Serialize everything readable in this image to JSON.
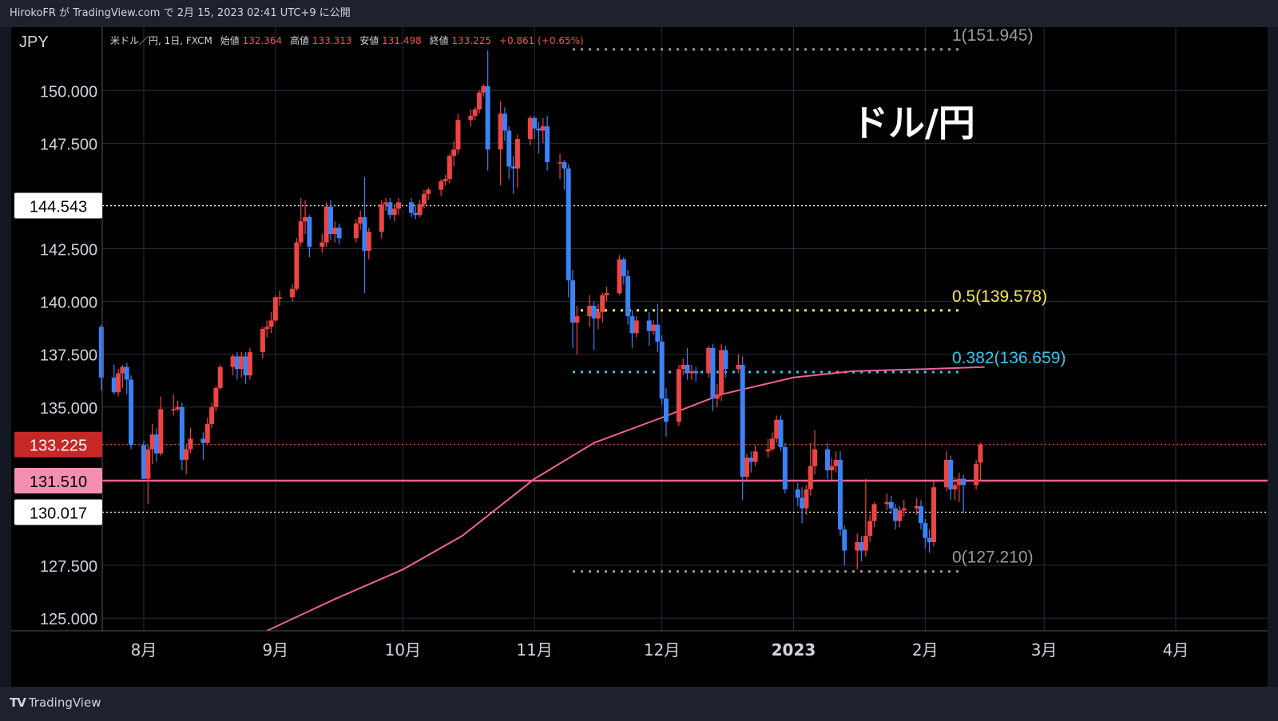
{
  "publish_line": "HirokoFR が TradingView.com で 2月 15, 2023 02:41 UTC+9 に公開",
  "footer_brand": "TradingView",
  "chart_data": {
    "type": "candlestick",
    "currency_label": "JPY",
    "title": "ドル/円",
    "ohlc_header": {
      "symbol": "米ドル／円, 1日, FXCM",
      "open_label": "始値",
      "open": "132.364",
      "high_label": "高値",
      "high": "133.313",
      "low_label": "安値",
      "low": "131.498",
      "close_label": "終値",
      "close": "133.225",
      "change": "+0.861 (+0.65%)"
    },
    "y_axis": {
      "ylim": [
        124.4,
        153.0
      ],
      "ticks": [
        "150.000",
        "147.500",
        "142.500",
        "140.000",
        "137.500",
        "135.000",
        "127.500",
        "125.000"
      ]
    },
    "x_axis": {
      "ticks": [
        {
          "label": "8月",
          "x": "2022-08-01",
          "bold": false
        },
        {
          "label": "9月",
          "x": "2022-09-01",
          "bold": false
        },
        {
          "label": "10月",
          "x": "2022-10-01",
          "bold": false
        },
        {
          "label": "11月",
          "x": "2022-11-01",
          "bold": false
        },
        {
          "label": "12月",
          "x": "2022-12-01",
          "bold": false
        },
        {
          "label": "2023",
          "x": "2023-01-01",
          "bold": true
        },
        {
          "label": "2月",
          "x": "2023-02-01",
          "bold": false
        },
        {
          "label": "3月",
          "x": "2023-03-01",
          "bold": false
        },
        {
          "label": "4月",
          "x": "2023-04-01",
          "bold": false
        }
      ]
    },
    "price_labels": [
      {
        "value": "144.543",
        "kind": "white"
      },
      {
        "value": "133.225",
        "kind": "red"
      },
      {
        "value": "131.510",
        "kind": "pink"
      },
      {
        "value": "130.017",
        "kind": "white"
      }
    ],
    "horizontal_lines": [
      {
        "value": 144.543,
        "style": "dotted",
        "color": "#ffffff"
      },
      {
        "value": 133.225,
        "style": "dotted",
        "color": "#e8453c"
      },
      {
        "value": 131.51,
        "style": "solid",
        "color": "#f06292"
      },
      {
        "value": 130.017,
        "style": "dotted",
        "color": "#ffffff"
      }
    ],
    "fibonacci": [
      {
        "label": "1(151.945)",
        "value": 151.945,
        "color": "#9a9a9a"
      },
      {
        "label": "0.5(139.578)",
        "value": 139.578,
        "color": "#f7e84a"
      },
      {
        "label": "0.382(136.659)",
        "value": 136.659,
        "color": "#36c5f0"
      },
      {
        "label": "0(127.210)",
        "value": 127.21,
        "color": "#9a9a9a"
      }
    ],
    "fib_range": [
      "2022-11-10",
      "2023-02-10"
    ],
    "colors": {
      "up": "#ef4444",
      "down": "#3b82f6",
      "ma": "#f06292"
    },
    "moving_average": [
      [
        "2022-08-30",
        124.4
      ],
      [
        "2022-09-15",
        125.9
      ],
      [
        "2022-10-01",
        127.3
      ],
      [
        "2022-10-15",
        128.9
      ],
      [
        "2022-11-01",
        131.6
      ],
      [
        "2022-11-15",
        133.3
      ],
      [
        "2022-12-01",
        134.5
      ],
      [
        "2022-12-15",
        135.6
      ],
      [
        "2023-01-01",
        136.4
      ],
      [
        "2023-01-15",
        136.7
      ],
      [
        "2023-02-01",
        136.8
      ],
      [
        "2023-02-15",
        136.9
      ]
    ],
    "candles": [
      [
        "2022-07-22",
        138.8,
        136.4,
        138.9,
        135.8
      ],
      [
        "2022-07-25",
        136.4,
        135.7,
        137.0,
        135.6
      ],
      [
        "2022-07-26",
        135.7,
        136.6,
        136.8,
        135.5
      ],
      [
        "2022-07-27",
        136.6,
        136.9,
        137.0,
        135.9
      ],
      [
        "2022-07-28",
        136.9,
        136.3,
        137.1,
        135.6
      ],
      [
        "2022-07-29",
        136.3,
        133.2,
        136.5,
        133.0
      ],
      [
        "2022-08-01",
        133.2,
        131.6,
        133.4,
        131.6
      ],
      [
        "2022-08-02",
        131.6,
        133.0,
        133.2,
        130.4
      ],
      [
        "2022-08-03",
        133.0,
        133.7,
        134.2,
        132.3
      ],
      [
        "2022-08-04",
        133.7,
        132.8,
        134.0,
        132.4
      ],
      [
        "2022-08-05",
        132.8,
        134.9,
        135.5,
        132.7
      ],
      [
        "2022-08-08",
        134.9,
        134.9,
        135.6,
        134.6
      ],
      [
        "2022-08-09",
        134.9,
        135.0,
        135.3,
        134.8
      ],
      [
        "2022-08-10",
        135.0,
        132.5,
        135.2,
        132.0
      ],
      [
        "2022-08-11",
        132.5,
        133.0,
        133.2,
        131.8
      ],
      [
        "2022-08-12",
        133.0,
        133.5,
        134.0,
        132.8
      ],
      [
        "2022-08-15",
        133.5,
        133.3,
        133.8,
        132.5
      ],
      [
        "2022-08-16",
        133.3,
        134.2,
        134.5,
        133.2
      ],
      [
        "2022-08-17",
        134.2,
        135.0,
        135.2,
        134.0
      ],
      [
        "2022-08-18",
        135.0,
        135.9,
        136.0,
        134.8
      ],
      [
        "2022-08-19",
        135.9,
        136.9,
        137.0,
        135.8
      ],
      [
        "2022-08-22",
        136.9,
        137.4,
        137.5,
        136.5
      ],
      [
        "2022-08-23",
        137.4,
        136.8,
        137.6,
        136.3
      ],
      [
        "2022-08-24",
        136.8,
        137.4,
        137.6,
        136.4
      ],
      [
        "2022-08-25",
        137.4,
        136.5,
        137.6,
        136.1
      ],
      [
        "2022-08-26",
        136.5,
        137.6,
        137.8,
        136.3
      ],
      [
        "2022-08-29",
        137.6,
        138.7,
        138.8,
        137.3
      ],
      [
        "2022-08-30",
        138.7,
        138.8,
        139.1,
        138.3
      ],
      [
        "2022-08-31",
        138.8,
        139.1,
        139.5,
        138.5
      ],
      [
        "2022-09-01",
        139.1,
        140.2,
        140.3,
        139.0
      ],
      [
        "2022-09-02",
        140.2,
        140.2,
        140.5,
        139.8
      ],
      [
        "2022-09-05",
        140.2,
        140.6,
        140.8,
        140.0
      ],
      [
        "2022-09-06",
        140.6,
        142.8,
        143.0,
        140.5
      ],
      [
        "2022-09-07",
        142.8,
        143.8,
        144.9,
        142.6
      ],
      [
        "2022-09-08",
        143.8,
        144.0,
        144.8,
        143.2
      ],
      [
        "2022-09-09",
        144.0,
        142.6,
        144.1,
        142.1
      ],
      [
        "2022-09-12",
        142.6,
        142.8,
        143.2,
        142.3
      ],
      [
        "2022-09-13",
        142.8,
        144.5,
        144.7,
        142.6
      ],
      [
        "2022-09-14",
        144.5,
        143.2,
        144.8,
        142.9
      ],
      [
        "2022-09-15",
        143.2,
        143.5,
        143.8,
        142.8
      ],
      [
        "2022-09-16",
        143.5,
        143.0,
        143.7,
        142.7
      ],
      [
        "2022-09-20",
        143.0,
        143.7,
        143.9,
        142.8
      ],
      [
        "2022-09-21",
        143.7,
        144.0,
        144.3,
        143.4
      ],
      [
        "2022-09-22",
        144.0,
        142.4,
        145.9,
        140.4
      ],
      [
        "2022-09-23",
        142.4,
        143.3,
        143.5,
        142.0
      ],
      [
        "2022-09-26",
        143.3,
        144.6,
        144.8,
        143.0
      ],
      [
        "2022-09-27",
        144.6,
        144.7,
        144.9,
        144.3
      ],
      [
        "2022-09-28",
        144.7,
        144.1,
        144.9,
        143.9
      ],
      [
        "2022-09-29",
        144.1,
        144.4,
        144.6,
        143.8
      ],
      [
        "2022-09-30",
        144.4,
        144.7,
        144.9,
        144.1
      ],
      [
        "2022-10-03",
        144.7,
        144.2,
        144.9,
        144.0
      ],
      [
        "2022-10-04",
        144.2,
        144.1,
        144.5,
        143.9
      ],
      [
        "2022-10-05",
        144.1,
        144.6,
        144.8,
        144.0
      ],
      [
        "2022-10-06",
        144.6,
        145.1,
        145.3,
        144.4
      ],
      [
        "2022-10-07",
        145.1,
        145.3,
        145.4,
        144.8
      ],
      [
        "2022-10-10",
        145.3,
        145.7,
        145.8,
        145.0
      ],
      [
        "2022-10-11",
        145.7,
        145.8,
        146.0,
        145.5
      ],
      [
        "2022-10-12",
        145.8,
        146.9,
        147.0,
        145.6
      ],
      [
        "2022-10-13",
        146.9,
        147.2,
        147.6,
        146.4
      ],
      [
        "2022-10-14",
        147.2,
        148.6,
        148.9,
        147.0
      ],
      [
        "2022-10-17",
        148.6,
        148.8,
        149.1,
        148.3
      ],
      [
        "2022-10-18",
        148.8,
        149.1,
        149.2,
        148.6
      ],
      [
        "2022-10-19",
        149.1,
        149.9,
        150.0,
        148.9
      ],
      [
        "2022-10-20",
        149.9,
        150.2,
        150.3,
        149.7
      ],
      [
        "2022-10-21",
        150.2,
        147.2,
        151.9,
        146.2
      ],
      [
        "2022-10-24",
        147.2,
        148.9,
        149.5,
        145.5
      ],
      [
        "2022-10-25",
        148.9,
        148.1,
        149.2,
        147.6
      ],
      [
        "2022-10-26",
        148.1,
        146.4,
        148.3,
        145.8
      ],
      [
        "2022-10-27",
        146.4,
        146.3,
        146.9,
        145.1
      ],
      [
        "2022-10-28",
        146.3,
        147.7,
        147.9,
        145.4
      ],
      [
        "2022-10-31",
        147.7,
        148.7,
        148.8,
        147.4
      ],
      [
        "2022-11-01",
        148.7,
        148.2,
        148.8,
        147.7
      ],
      [
        "2022-11-02",
        148.2,
        148.1,
        148.5,
        147.0
      ],
      [
        "2022-11-03",
        148.1,
        148.3,
        148.7,
        147.5
      ],
      [
        "2022-11-04",
        148.3,
        146.6,
        148.8,
        146.2
      ],
      [
        "2022-11-07",
        146.6,
        146.6,
        147.0,
        145.8
      ],
      [
        "2022-11-08",
        146.6,
        146.3,
        146.7,
        145.3
      ],
      [
        "2022-11-09",
        146.3,
        141.0,
        146.5,
        140.2
      ],
      [
        "2022-11-10",
        141.0,
        139.0,
        141.5,
        137.8
      ],
      [
        "2022-11-11",
        139.0,
        139.3,
        139.8,
        137.5
      ],
      [
        "2022-11-14",
        139.3,
        139.8,
        140.3,
        138.8
      ],
      [
        "2022-11-15",
        139.8,
        139.2,
        140.0,
        137.7
      ],
      [
        "2022-11-16",
        139.2,
        139.5,
        139.9,
        138.7
      ],
      [
        "2022-11-17",
        139.5,
        140.3,
        140.4,
        139.0
      ],
      [
        "2022-11-18",
        140.3,
        140.4,
        140.7,
        140.0
      ],
      [
        "2022-11-21",
        140.4,
        142.0,
        142.2,
        140.3
      ],
      [
        "2022-11-22",
        142.0,
        141.2,
        142.1,
        140.8
      ],
      [
        "2022-11-23",
        141.2,
        139.3,
        141.5,
        138.9
      ],
      [
        "2022-11-24",
        139.3,
        138.5,
        139.6,
        137.8
      ],
      [
        "2022-11-25",
        138.5,
        139.1,
        139.3,
        138.3
      ],
      [
        "2022-11-28",
        139.1,
        138.6,
        139.5,
        137.9
      ],
      [
        "2022-11-29",
        138.6,
        138.9,
        139.1,
        138.4
      ],
      [
        "2022-11-30",
        138.9,
        138.1,
        139.9,
        137.6
      ],
      [
        "2022-12-01",
        138.1,
        135.4,
        138.4,
        135.1
      ],
      [
        "2022-12-02",
        135.4,
        134.3,
        135.9,
        133.6
      ],
      [
        "2022-12-05",
        134.3,
        136.8,
        137.0,
        134.1
      ],
      [
        "2022-12-06",
        136.8,
        137.0,
        137.3,
        136.5
      ],
      [
        "2022-12-07",
        137.0,
        136.6,
        137.8,
        136.3
      ],
      [
        "2022-12-08",
        136.6,
        136.7,
        137.0,
        136.3
      ],
      [
        "2022-12-09",
        136.7,
        136.6,
        136.9,
        136.2
      ],
      [
        "2022-12-12",
        136.6,
        137.8,
        137.9,
        136.4
      ],
      [
        "2022-12-13",
        137.8,
        135.4,
        138.0,
        134.8
      ],
      [
        "2022-12-14",
        135.4,
        135.6,
        136.1,
        135.0
      ],
      [
        "2022-12-15",
        135.6,
        137.7,
        138.0,
        135.3
      ],
      [
        "2022-12-16",
        137.7,
        136.8,
        137.9,
        136.4
      ],
      [
        "2022-12-19",
        136.8,
        137.0,
        137.5,
        136.6
      ],
      [
        "2022-12-20",
        137.0,
        131.7,
        137.4,
        130.6
      ],
      [
        "2022-12-21",
        131.7,
        132.6,
        132.8,
        131.5
      ],
      [
        "2022-12-22",
        132.6,
        132.4,
        132.9,
        131.9
      ],
      [
        "2022-12-23",
        132.4,
        132.9,
        133.2,
        132.2
      ],
      [
        "2022-12-26",
        132.9,
        133.0,
        133.5,
        132.6
      ],
      [
        "2022-12-27",
        133.0,
        133.5,
        133.8,
        132.9
      ],
      [
        "2022-12-28",
        133.5,
        134.4,
        134.6,
        133.3
      ],
      [
        "2022-12-29",
        134.4,
        133.1,
        134.6,
        132.9
      ],
      [
        "2022-12-30",
        133.1,
        131.1,
        133.3,
        130.9
      ],
      [
        "2023-01-02",
        131.1,
        130.7,
        131.4,
        130.3
      ],
      [
        "2023-01-03",
        130.7,
        130.2,
        131.2,
        129.5
      ],
      [
        "2023-01-04",
        130.2,
        131.1,
        131.3,
        129.9
      ],
      [
        "2023-01-05",
        131.1,
        132.2,
        133.3,
        130.8
      ],
      [
        "2023-01-06",
        132.2,
        133.0,
        133.9,
        131.8
      ],
      [
        "2023-01-09",
        133.0,
        132.0,
        133.3,
        131.6
      ],
      [
        "2023-01-10",
        132.0,
        132.2,
        132.6,
        131.5
      ],
      [
        "2023-01-11",
        132.2,
        132.5,
        132.9,
        131.9
      ],
      [
        "2023-01-12",
        132.5,
        129.2,
        132.9,
        128.9
      ],
      [
        "2023-01-13",
        129.2,
        128.2,
        129.4,
        127.5
      ],
      [
        "2023-01-16",
        128.2,
        128.6,
        129.0,
        127.3
      ],
      [
        "2023-01-17",
        128.6,
        128.2,
        128.9,
        127.7
      ],
      [
        "2023-01-18",
        128.2,
        128.9,
        131.6,
        127.9
      ],
      [
        "2023-01-19",
        128.9,
        129.6,
        129.9,
        128.6
      ],
      [
        "2023-01-20",
        129.6,
        130.4,
        130.5,
        129.3
      ],
      [
        "2023-01-23",
        130.4,
        130.5,
        130.9,
        130.1
      ],
      [
        "2023-01-24",
        130.5,
        130.2,
        130.8,
        129.9
      ],
      [
        "2023-01-25",
        130.2,
        129.6,
        130.4,
        129.2
      ],
      [
        "2023-01-26",
        129.6,
        130.1,
        130.3,
        129.3
      ],
      [
        "2023-01-27",
        130.1,
        130.2,
        130.6,
        129.8
      ],
      [
        "2023-01-30",
        130.2,
        130.3,
        130.7,
        129.9
      ],
      [
        "2023-01-31",
        130.3,
        129.5,
        130.6,
        129.2
      ],
      [
        "2023-02-01",
        129.5,
        128.8,
        129.7,
        128.3
      ],
      [
        "2023-02-02",
        128.8,
        128.6,
        129.2,
        128.1
      ],
      [
        "2023-02-03",
        128.6,
        131.2,
        131.5,
        128.4
      ],
      [
        "2023-02-06",
        131.2,
        132.5,
        132.9,
        131.0
      ],
      [
        "2023-02-07",
        132.5,
        131.1,
        132.7,
        130.6
      ],
      [
        "2023-02-08",
        131.1,
        131.3,
        131.7,
        130.6
      ],
      [
        "2023-02-09",
        131.3,
        131.6,
        131.9,
        130.5
      ],
      [
        "2023-02-10",
        131.6,
        131.3,
        131.8,
        130.0
      ],
      [
        "2023-02-13",
        131.3,
        132.3,
        132.5,
        131.1
      ],
      [
        "2023-02-14",
        132.364,
        133.225,
        133.313,
        131.498
      ]
    ]
  }
}
